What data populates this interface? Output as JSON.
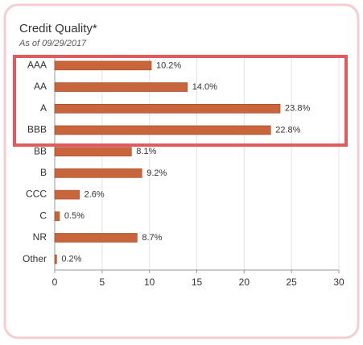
{
  "chart_data": {
    "type": "bar",
    "orientation": "horizontal",
    "title": "Credit Quality*",
    "subtitle": "As of 09/29/2017",
    "categories": [
      "AAA",
      "AA",
      "A",
      "BBB",
      "BB",
      "B",
      "CCC",
      "C",
      "NR",
      "Other"
    ],
    "values": [
      10.2,
      14.0,
      23.8,
      22.8,
      8.1,
      9.2,
      2.6,
      0.5,
      8.7,
      0.2
    ],
    "value_labels": [
      "10.2%",
      "14.0%",
      "23.8%",
      "22.8%",
      "8.1%",
      "9.2%",
      "2.6%",
      "0.5%",
      "8.7%",
      "0.2%"
    ],
    "color": "#c9653b",
    "xlim": [
      0,
      30
    ],
    "xticks": [
      0,
      5,
      10,
      15,
      20,
      25,
      30
    ],
    "grid": true
  }
}
